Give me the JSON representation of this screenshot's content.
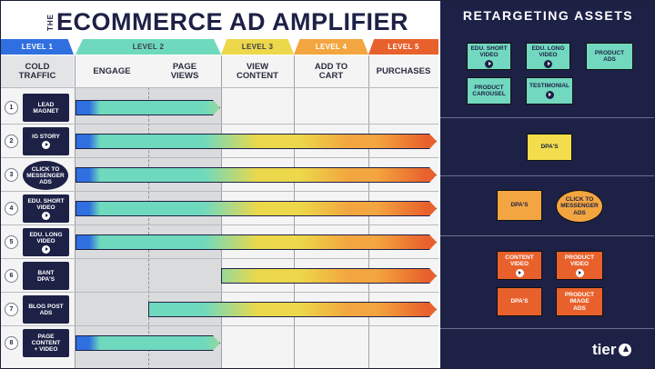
{
  "title": {
    "prefix": "THE",
    "main": "ECOMMERCE AD AMPLIFIER"
  },
  "levels": [
    {
      "label": "LEVEL 1",
      "color": "#2f6fe0"
    },
    {
      "label": "LEVEL 2",
      "color": "#6fd9be"
    },
    {
      "label": "LEVEL 3",
      "color": "#ecd84a"
    },
    {
      "label": "LEVEL 4",
      "color": "#f3a53f"
    },
    {
      "label": "LEVEL 5",
      "color": "#e8612c"
    }
  ],
  "stages": [
    {
      "line1": "COLD",
      "line2": "TRAFFIC"
    },
    {
      "line1": "ENGAGE",
      "line2": ""
    },
    {
      "line1": "PAGE",
      "line2": "VIEWS"
    },
    {
      "line1": "VIEW",
      "line2": "CONTENT"
    },
    {
      "line1": "ADD TO",
      "line2": "CART"
    },
    {
      "line1": "PURCHASES",
      "line2": ""
    }
  ],
  "rows": [
    {
      "number": "1",
      "line1": "LEAD",
      "line2": "MAGNET",
      "line3": "",
      "play": false,
      "bubble": false,
      "start_stage": 1,
      "end_stage": 3
    },
    {
      "number": "2",
      "line1": "IG STORY",
      "line2": "",
      "line3": "",
      "play": true,
      "bubble": false,
      "start_stage": 1,
      "end_stage": 6
    },
    {
      "number": "3",
      "line1": "CLICK TO",
      "line2": "MESSENGER",
      "line3": "ADS",
      "play": false,
      "bubble": true,
      "start_stage": 1,
      "end_stage": 6
    },
    {
      "number": "4",
      "line1": "EDU. SHORT",
      "line2": "VIDEO",
      "line3": "",
      "play": true,
      "bubble": false,
      "start_stage": 1,
      "end_stage": 6
    },
    {
      "number": "5",
      "line1": "EDU. LONG",
      "line2": "VIDEO",
      "line3": "",
      "play": true,
      "bubble": false,
      "start_stage": 1,
      "end_stage": 6
    },
    {
      "number": "6",
      "line1": "BANT",
      "line2": "DPA'S",
      "line3": "",
      "play": false,
      "bubble": false,
      "start_stage": 3,
      "end_stage": 6
    },
    {
      "number": "7",
      "line1": "BLOG POST",
      "line2": "ADS",
      "line3": "",
      "play": false,
      "bubble": false,
      "start_stage": 2,
      "end_stage": 6
    },
    {
      "number": "8",
      "line1": "PAGE",
      "line2": "CONTENT",
      "line3": "+ VIDEO",
      "play": false,
      "bubble": false,
      "start_stage": 1,
      "end_stage": 3
    }
  ],
  "retargeting": {
    "title": "RETARGETING ASSETS",
    "groups": [
      {
        "assets": [
          {
            "line1": "EDU. SHORT",
            "line2": "VIDEO",
            "line3": "",
            "play": true,
            "style": "teal"
          },
          {
            "line1": "EDU. LONG",
            "line2": "VIDEO",
            "line3": "",
            "play": true,
            "style": "teal"
          },
          {
            "line1": "PRODUCT",
            "line2": "ADS",
            "line3": "",
            "play": false,
            "style": "teal"
          },
          {
            "line1": "PRODUCT",
            "line2": "CAROUSEL",
            "line3": "",
            "play": false,
            "style": "teal"
          },
          {
            "line1": "TESTIMONIAL",
            "line2": "",
            "line3": "",
            "play": true,
            "style": "teal"
          }
        ]
      },
      {
        "assets": [
          {
            "line1": "DPA'S",
            "line2": "",
            "line3": "",
            "play": false,
            "style": "yellow"
          }
        ]
      },
      {
        "assets": [
          {
            "line1": "DPA'S",
            "line2": "",
            "line3": "",
            "play": false,
            "style": "orange"
          },
          {
            "line1": "CLICK TO",
            "line2": "MESSENGER",
            "line3": "ADS",
            "play": false,
            "style": "orange-bubble"
          }
        ]
      },
      {
        "assets": [
          {
            "line1": "CONTENT",
            "line2": "VIDEO",
            "line3": "",
            "play": true,
            "style": "red"
          },
          {
            "line1": "PRODUCT",
            "line2": "VIDEO",
            "line3": "",
            "play": true,
            "style": "red"
          },
          {
            "line1": "DPA'S",
            "line2": "",
            "line3": "",
            "play": false,
            "style": "red"
          },
          {
            "line1": "PRODUCT",
            "line2": "IMAGE",
            "line3": "ADS",
            "play": false,
            "style": "red"
          }
        ]
      }
    ]
  },
  "logo": {
    "text": "tier",
    "icon": "tier-arrow-icon"
  }
}
